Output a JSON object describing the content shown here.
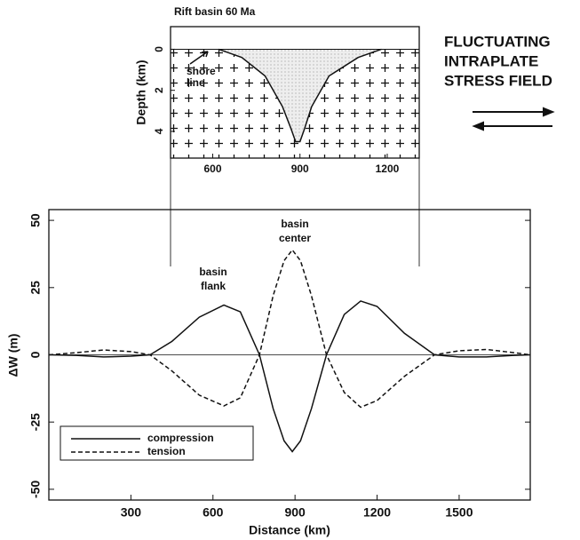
{
  "side_text": [
    "FLUCTUATING",
    "INTRAPLATE",
    "STRESS FIELD"
  ],
  "chart_data": [
    {
      "type": "area",
      "title": "Rift basin 60 Ma",
      "y_label": "Depth (km)",
      "annotation": [
        "shore",
        "line"
      ],
      "x": [
        620,
        700,
        780,
        840,
        870,
        885,
        900,
        915,
        940,
        1000,
        1100,
        1180
      ],
      "values": [
        0,
        0.4,
        1.3,
        2.8,
        3.9,
        4.5,
        4.5,
        3.9,
        2.8,
        1.3,
        0.4,
        0
      ],
      "xlim": [
        455,
        1310
      ],
      "ylim": [
        -1.1,
        5.3
      ],
      "y_inverted": true,
      "xticks": [
        600,
        900,
        1200
      ],
      "yticks": [
        0,
        2,
        4
      ],
      "color": "#111"
    },
    {
      "type": "line",
      "x_label": "Distance (km)",
      "y_label": "ΔW (m)",
      "annotations": [
        [
          "basin",
          "flank"
        ],
        [
          "basin",
          "center"
        ]
      ],
      "x": [
        0,
        100,
        200,
        300,
        370,
        450,
        550,
        640,
        700,
        770,
        820,
        860,
        890,
        920,
        960,
        1015,
        1080,
        1140,
        1200,
        1300,
        1410,
        1500,
        1600,
        1700,
        1760
      ],
      "series": [
        {
          "name": "compression",
          "color": "#111",
          "dashed": false,
          "values": [
            0,
            -0.2,
            -0.8,
            -0.5,
            0,
            5,
            14,
            18.5,
            16,
            0,
            -20,
            -32,
            -36,
            -32,
            -20,
            0,
            15,
            20,
            18,
            8,
            0,
            -0.8,
            -0.8,
            -0.2,
            0
          ]
        },
        {
          "name": "tension",
          "color": "#111",
          "dashed": true,
          "values": [
            0,
            0.8,
            1.8,
            1.2,
            0,
            -6,
            -15,
            -19,
            -16,
            0,
            22,
            35,
            39,
            35,
            22,
            0,
            -14,
            -19.5,
            -17,
            -8,
            0,
            1.5,
            2,
            0.8,
            0
          ]
        }
      ],
      "xlim": [
        0,
        1760
      ],
      "ylim": [
        -54,
        54
      ],
      "xticks": [
        300,
        600,
        900,
        1200,
        1500
      ],
      "yticks": [
        -50,
        -25,
        0,
        25,
        50
      ],
      "legend": "lower left"
    }
  ]
}
